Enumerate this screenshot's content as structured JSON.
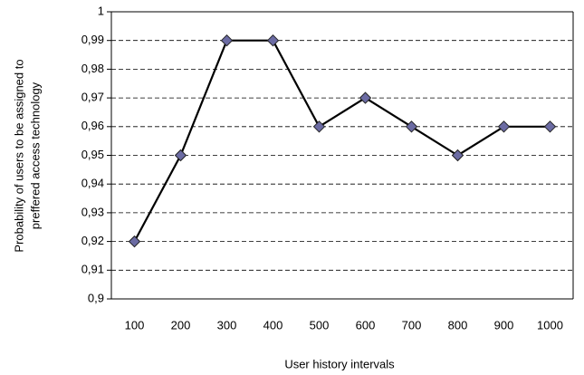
{
  "chart_data": {
    "type": "line",
    "ylabel": [
      "Probability of users to be assigned to",
      "preffered access technology"
    ],
    "xlabel": "User history intervals",
    "categories": [
      "100",
      "200",
      "300",
      "400",
      "500",
      "600",
      "700",
      "800",
      "900",
      "1000"
    ],
    "series": [
      {
        "color": "#000000",
        "marker_color": "#6b6ba3",
        "values": [
          0.92,
          0.95,
          0.99,
          0.99,
          0.96,
          0.97,
          0.96,
          0.95,
          0.96,
          0.96
        ]
      }
    ],
    "ylim": [
      0.9,
      1
    ],
    "yticks": [
      {
        "value": 0.9,
        "label": "0,9"
      },
      {
        "value": 0.91,
        "label": "0,91"
      },
      {
        "value": 0.92,
        "label": "0,92"
      },
      {
        "value": 0.93,
        "label": "0,93"
      },
      {
        "value": 0.94,
        "label": "0,94"
      },
      {
        "value": 0.95,
        "label": "0,95"
      },
      {
        "value": 0.96,
        "label": "0,96"
      },
      {
        "value": 0.97,
        "label": "0,97"
      },
      {
        "value": 0.98,
        "label": "0,98"
      },
      {
        "value": 0.99,
        "label": "0,99"
      },
      1
    ],
    "grid": true
  }
}
